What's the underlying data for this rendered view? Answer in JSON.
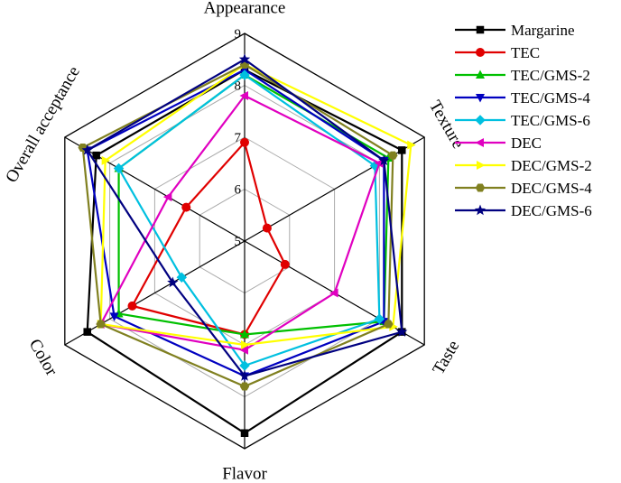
{
  "chart_data": {
    "type": "radar",
    "axes": [
      "Appearance",
      "Texture",
      "Taste",
      "Flavor",
      "Color",
      "Overall acceptance"
    ],
    "rlim": [
      5,
      9
    ],
    "ticks": [
      "5",
      "6",
      "7",
      "8",
      "9"
    ],
    "grid": true,
    "legend_position": "right",
    "series": [
      {
        "name": "Margarine",
        "color": "#000000",
        "marker": "square",
        "values": [
          8.3,
          8.5,
          8.5,
          8.7,
          8.5,
          8.3
        ]
      },
      {
        "name": "TEC",
        "color": "#e00000",
        "marker": "circle",
        "values": [
          6.9,
          5.5,
          5.9,
          6.8,
          7.5,
          6.3
        ]
      },
      {
        "name": "TEC/GMS-2",
        "color": "#00c000",
        "marker": "triangle-up",
        "values": [
          8.2,
          8.2,
          8.1,
          6.8,
          7.8,
          7.8
        ]
      },
      {
        "name": "TEC/GMS-4",
        "color": "#0000c0",
        "marker": "triangle-down",
        "values": [
          8.3,
          8.1,
          8.1,
          7.6,
          7.9,
          8.5
        ]
      },
      {
        "name": "TEC/GMS-6",
        "color": "#00c0e0",
        "marker": "diamond",
        "values": [
          8.2,
          7.9,
          8.0,
          7.4,
          6.4,
          7.8
        ]
      },
      {
        "name": "DEC",
        "color": "#e000c0",
        "marker": "triangle-left",
        "values": [
          7.8,
          8.0,
          7.0,
          7.1,
          8.2,
          6.7
        ]
      },
      {
        "name": "DEC/GMS-2",
        "color": "#ffff00",
        "marker": "triangle-right",
        "values": [
          8.4,
          8.7,
          8.3,
          7.0,
          8.2,
          8.1
        ]
      },
      {
        "name": "DEC/GMS-4",
        "color": "#808020",
        "marker": "hexagon",
        "values": [
          8.4,
          8.3,
          8.2,
          7.8,
          8.2,
          8.6
        ]
      },
      {
        "name": "DEC/GMS-6",
        "color": "#000080",
        "marker": "star",
        "values": [
          8.5,
          8.1,
          8.5,
          7.6,
          6.6,
          8.5
        ]
      }
    ]
  }
}
